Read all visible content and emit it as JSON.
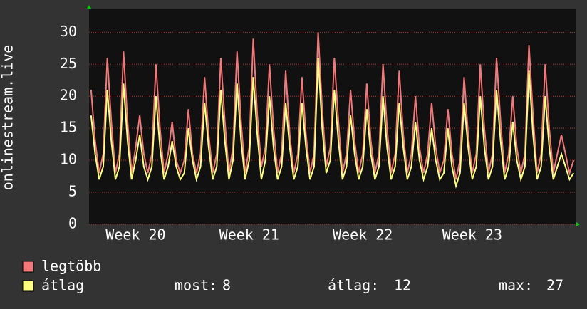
{
  "chart_data": {
    "type": "line",
    "ylabel": "onlinestream.live",
    "categories": [
      null,
      null,
      null,
      null,
      null,
      null,
      null,
      null,
      null,
      null,
      null,
      "Week 20",
      null,
      null,
      null,
      null,
      null,
      null,
      null,
      null,
      null,
      null,
      null,
      null,
      null,
      null,
      null,
      null,
      null,
      null,
      null,
      null,
      null,
      null,
      null,
      null,
      null,
      null,
      null,
      "Week 21",
      null,
      null,
      null,
      null,
      null,
      null,
      null,
      null,
      null,
      null,
      null,
      null,
      null,
      null,
      null,
      null,
      null,
      null,
      null,
      null,
      null,
      null,
      null,
      null,
      null,
      null,
      null,
      "Week 22",
      null,
      null,
      null,
      null,
      null,
      null,
      null,
      null,
      null,
      null,
      null,
      null,
      null,
      null,
      null,
      null,
      null,
      null,
      null,
      null,
      null,
      null,
      null,
      null,
      null,
      null,
      "Week 23",
      null,
      null,
      null,
      null,
      null,
      null,
      null,
      null,
      null,
      null,
      null,
      null,
      null,
      null,
      null,
      null,
      null,
      null,
      null,
      null,
      null,
      null,
      null,
      null,
      null
    ],
    "series": [
      {
        "name": "legtöbb",
        "color": "#f07878",
        "values": [
          21,
          13,
          8,
          11,
          26,
          16,
          8,
          11,
          27,
          16,
          8,
          12,
          17,
          11,
          8,
          11,
          25,
          15,
          8,
          11,
          16,
          10,
          8,
          10,
          18,
          11,
          8,
          11,
          23,
          14,
          8,
          11,
          26,
          16,
          8,
          12,
          27,
          16,
          8,
          12,
          29,
          17,
          9,
          12,
          25,
          15,
          8,
          11,
          24,
          14,
          8,
          11,
          23,
          14,
          8,
          11,
          30,
          18,
          9,
          12,
          26,
          16,
          8,
          11,
          21,
          13,
          8,
          11,
          22,
          13,
          8,
          11,
          25,
          15,
          8,
          11,
          24,
          14,
          8,
          11,
          20,
          12,
          8,
          11,
          19,
          12,
          8,
          10,
          18,
          11,
          7,
          10,
          23,
          14,
          8,
          11,
          25,
          15,
          8,
          11,
          26,
          16,
          8,
          11,
          20,
          12,
          8,
          11,
          28,
          17,
          8,
          11,
          25,
          15,
          8,
          11,
          14,
          11,
          8,
          10
        ]
      },
      {
        "name": "átlag",
        "color": "#ffff80",
        "values": [
          17,
          11,
          7,
          9,
          21,
          13,
          7,
          9,
          22,
          13,
          7,
          10,
          14,
          9,
          7,
          9,
          20,
          12,
          7,
          9,
          13,
          9,
          7,
          8,
          15,
          10,
          7,
          9,
          19,
          12,
          7,
          9,
          21,
          13,
          7,
          10,
          22,
          13,
          7,
          10,
          23,
          14,
          7,
          10,
          20,
          12,
          7,
          9,
          19,
          12,
          7,
          9,
          19,
          12,
          7,
          9,
          26,
          15,
          8,
          10,
          21,
          13,
          7,
          9,
          17,
          11,
          7,
          9,
          18,
          11,
          7,
          9,
          20,
          12,
          7,
          9,
          19,
          12,
          7,
          9,
          16,
          10,
          7,
          9,
          15,
          10,
          7,
          8,
          15,
          9,
          6,
          8,
          19,
          12,
          7,
          9,
          20,
          12,
          7,
          9,
          21,
          13,
          7,
          9,
          16,
          10,
          7,
          9,
          24,
          14,
          7,
          9,
          20,
          12,
          7,
          9,
          11,
          9,
          7,
          8
        ]
      }
    ],
    "ylim": [
      0,
      33.6
    ],
    "yticks": [
      0,
      5,
      10,
      15,
      20,
      25,
      30
    ],
    "grid": true,
    "stats": [
      {
        "label": "most:",
        "value": 8
      },
      {
        "label": "átlag:",
        "value": 12
      },
      {
        "label": "max:",
        "value": 27
      }
    ]
  }
}
